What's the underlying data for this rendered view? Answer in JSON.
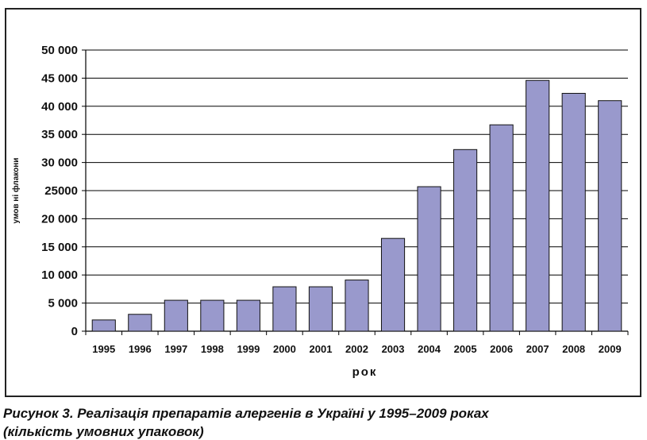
{
  "chart_data": {
    "type": "bar",
    "categories": [
      "1995",
      "1996",
      "1997",
      "1998",
      "1999",
      "2000",
      "2001",
      "2002",
      "2003",
      "2004",
      "2005",
      "2006",
      "2007",
      "2008",
      "2009"
    ],
    "values": [
      2000,
      3000,
      5500,
      5500,
      5500,
      7900,
      7900,
      9100,
      16500,
      25700,
      32300,
      36700,
      44600,
      42300,
      41000
    ],
    "xlabel": "рок",
    "ylabel": "умов ні флакони",
    "ylim": [
      0,
      50000
    ],
    "yticks": [
      0,
      5000,
      10000,
      15000,
      20000,
      25000,
      30000,
      35000,
      40000,
      45000,
      50000
    ],
    "ytick_labels": [
      "0",
      "5 000",
      "10 000",
      "15 000",
      "20 000",
      "25000",
      "30 000",
      "35 000",
      "40 000",
      "45 000",
      "50 000"
    ],
    "grid": true,
    "bar_color": "#9999cc"
  },
  "caption": {
    "line1": "Рисунок 3. Реалізація препаратів алергенів в Україні у 1995–2009 роках",
    "line2": "(кількість умовних упаковок)"
  }
}
